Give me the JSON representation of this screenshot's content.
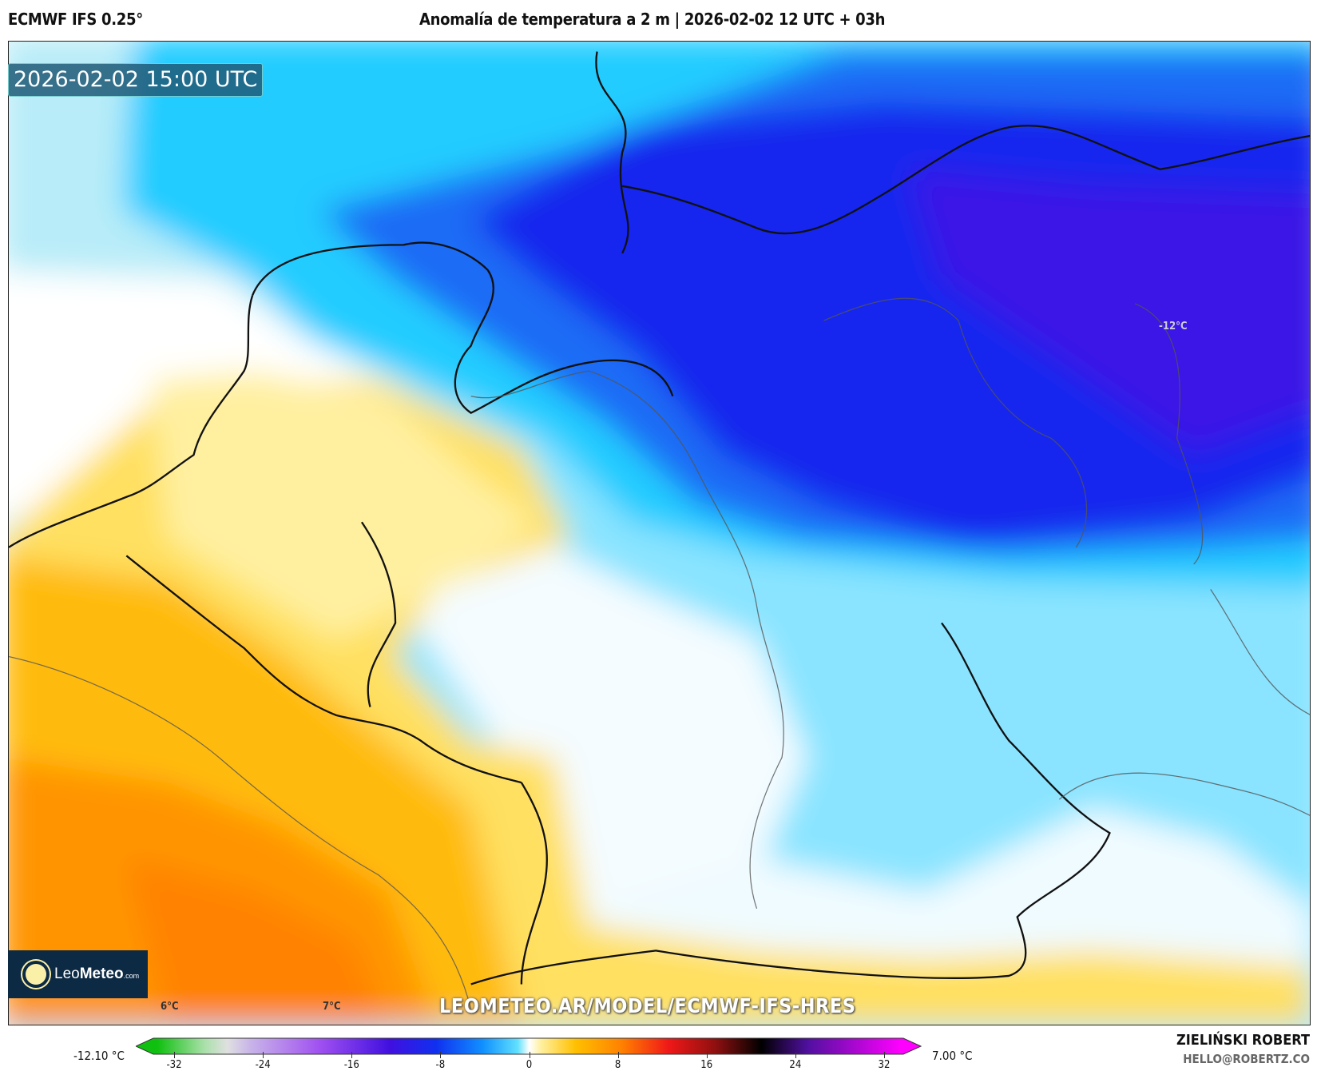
{
  "header": {
    "model": "ECMWF IFS 0.25°",
    "title": "Anomalía de temperatura a 2 m | 2026-02-02 12 UTC + 03h"
  },
  "map": {
    "valid_time": "2026-02-02 15:00 UTC",
    "labels": {
      "min_marker": "-12°C",
      "label_6": "6°C",
      "label_7": "7°C"
    },
    "watermark_url": "LEOMETEO.AR/MODEL/ECMWF-IFS-HRES",
    "logo_text": {
      "leo": "Leo",
      "meteo": "Meteo",
      "com": ".com"
    }
  },
  "colorbar": {
    "min_label": "-12.10 °C",
    "max_label": "7.00 °C",
    "ticks": [
      "-32",
      "-24",
      "-16",
      "-8",
      "0",
      "8",
      "16",
      "24",
      "32"
    ],
    "range": [
      -32,
      32
    ],
    "colors": {
      "-32": "#10c010",
      "-28": "#a8e0a8",
      "-26": "#e0e0e0",
      "-24": "#c8b4e8",
      "-18": "#a050f0",
      "-12": "#4010e0",
      "-8": "#1030f0",
      "-4": "#1090ff",
      "-1": "#60e0ff",
      "0": "#ffffff",
      "1": "#fff0a0",
      "4": "#ffc000",
      "8": "#ff8000",
      "12": "#f01818",
      "16": "#901010",
      "20": "#000000",
      "24": "#5010a0",
      "32": "#ff00ff"
    }
  },
  "credit": {
    "author": "ZIELIŃSKI ROBERT",
    "contact": "HELLO@ROBERTZ.CO"
  }
}
